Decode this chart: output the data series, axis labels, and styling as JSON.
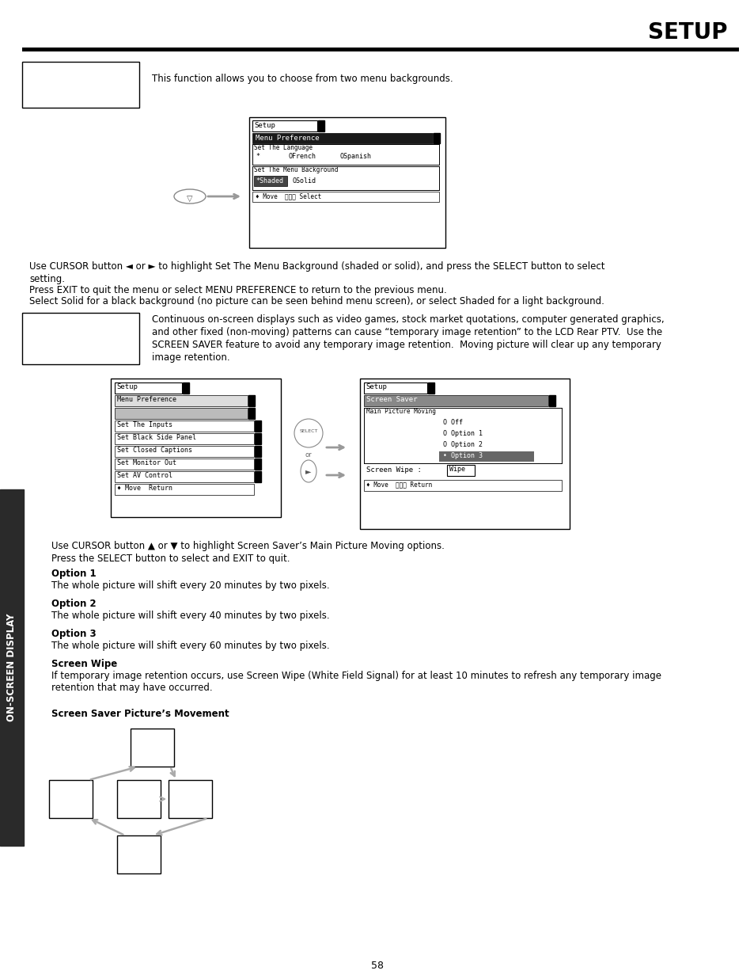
{
  "title": "SETUP",
  "page_number": "58",
  "bg_color": "#ffffff",
  "sidebar_text": "ON-SCREEN DISPLAY",
  "section1_desc": "This function allows you to choose from two menu backgrounds.",
  "para1_line1": "Use CURSOR button ◄ or ► to highlight Set The Menu Background (shaded or solid), and press the SELECT button to select",
  "para1_line2": "setting.",
  "para1_line3": "Press EXIT to quit the menu or select MENU PREFERENCE to return to the previous menu.",
  "para1_line4": "Select Solid for a black background (no picture can be seen behind menu screen), or select Shaded for a light background.",
  "section2_desc1": "Continuous on-screen displays such as video games, stock market quotations, computer generated graphics,",
  "section2_desc2": "and other fixed (non-moving) patterns can cause “temporary image retention” to the LCD Rear PTV.  Use the",
  "section2_desc3": "SCREEN SAVER feature to avoid any temporary image retention.  Moving picture will clear up any temporary",
  "section2_desc4": "image retention.",
  "menu2_items": [
    "Menu Preference",
    "",
    "Set The Inputs",
    "Set Black Side Panel",
    "Set Closed Captions",
    "Set Monitor Out",
    "Set AV Control",
    "♦ Move  Return"
  ],
  "menu3_items": [
    "O Off",
    "O Option 1",
    "O Option 2",
    "• Option 3"
  ],
  "para2_line1": "Use CURSOR button ▲ or ▼ to highlight Screen Saver’s Main Picture Moving options.",
  "para2_line2": "Press the SELECT button to select and EXIT to quit.",
  "opt1_title": "Option 1",
  "opt1_text": "The whole picture will shift every 20 minutes by two pixels.",
  "opt2_title": "Option 2",
  "opt2_text": "The whole picture will shift every 40 minutes by two pixels.",
  "opt3_title": "Option 3",
  "opt3_text": "The whole picture will shift every 60 minutes by two pixels.",
  "opt4_title": "Screen Wipe",
  "opt4_text": "If temporary image retention occurs, use Screen Wipe (White Field Signal) for at least 10 minutes to refresh any temporary image",
  "opt4_text2": "retention that may have occurred.",
  "sspm_title": "Screen Saver Picture’s Movement"
}
